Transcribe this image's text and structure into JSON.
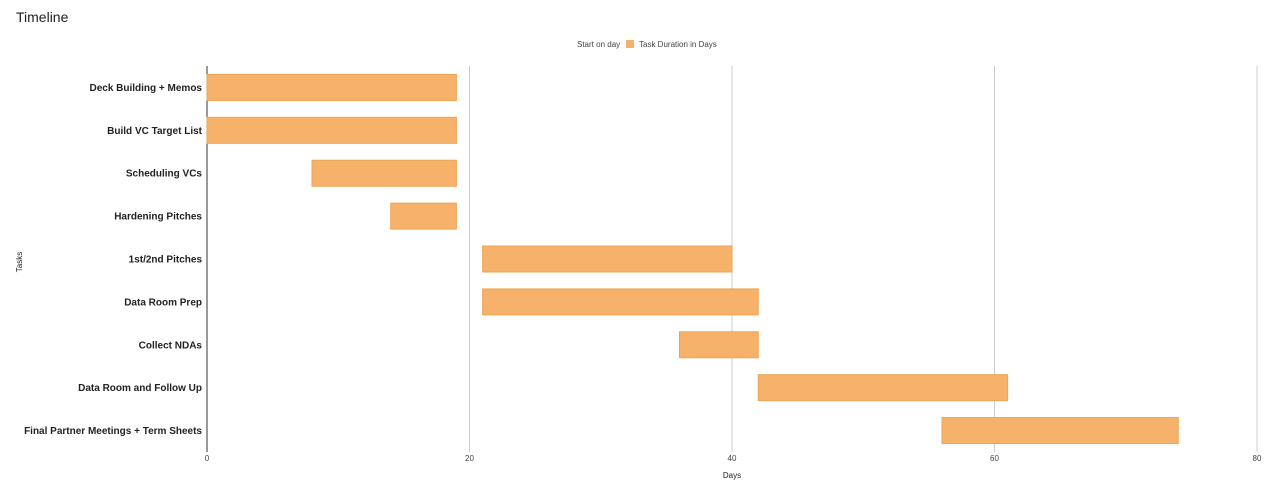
{
  "chart_data": {
    "type": "bar",
    "orientation": "horizontal",
    "stacked": true,
    "title": "Timeline",
    "xlabel": "Days",
    "ylabel": "Tasks",
    "xlim": [
      0,
      80
    ],
    "xticks": [
      0,
      20,
      40,
      60,
      80
    ],
    "grid": true,
    "legend_position": "top",
    "categories": [
      "Deck Building + Memos",
      "Build VC Target List",
      "Scheduling VCs",
      "Hardening Pitches",
      "1st/2nd Pitches",
      "Data Room Prep",
      "Collect NDAs",
      "Data Room and Follow Up",
      "Final Partner Meetings + Term Sheets"
    ],
    "series": [
      {
        "name": "Start on day",
        "values": [
          0,
          0,
          8,
          14,
          21,
          21,
          36,
          42,
          56
        ],
        "color": "transparent"
      },
      {
        "name": "Task Duration in Days",
        "values": [
          19,
          19,
          11,
          5,
          19,
          21,
          6,
          19,
          18
        ],
        "color": "#f6b26b"
      }
    ]
  }
}
